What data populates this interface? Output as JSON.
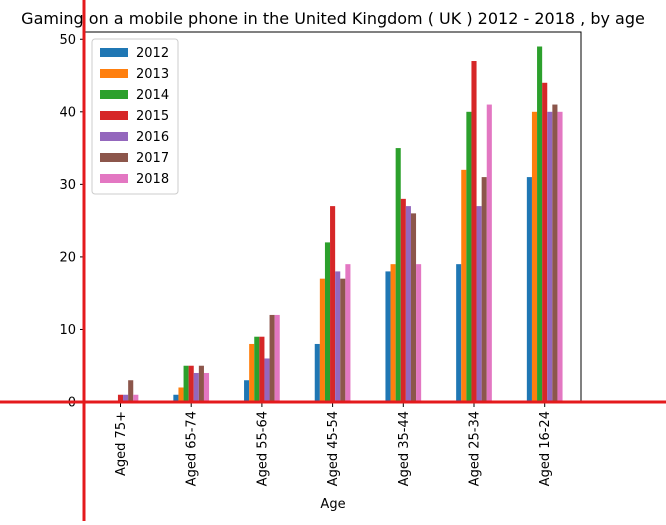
{
  "chart_data": {
    "type": "bar",
    "title": "Gaming on a mobile phone in the United Kingdom ( UK ) 2012 - 2018 , by age",
    "xlabel": "Age",
    "ylabel": "",
    "categories": [
      "Aged 75+",
      "Aged 65-74",
      "Aged 55-64",
      "Aged 45-54",
      "Aged 35-44",
      "Aged 25-34",
      "Aged 16-24"
    ],
    "ylim": [
      0,
      51
    ],
    "yticks": [
      0,
      10,
      20,
      30,
      40,
      50
    ],
    "grid": false,
    "legend_position": "top-left",
    "series": [
      {
        "name": "2012",
        "color": "#1f77b4",
        "values": [
          0,
          1,
          3,
          8,
          18,
          19,
          31
        ]
      },
      {
        "name": "2013",
        "color": "#ff7f0e",
        "values": [
          0,
          2,
          8,
          17,
          19,
          32,
          40
        ]
      },
      {
        "name": "2014",
        "color": "#2ca02c",
        "values": [
          0,
          5,
          9,
          22,
          35,
          40,
          49
        ]
      },
      {
        "name": "2015",
        "color": "#d62728",
        "values": [
          1,
          5,
          9,
          27,
          28,
          47,
          44
        ]
      },
      {
        "name": "2016",
        "color": "#9467bd",
        "values": [
          1,
          4,
          6,
          18,
          27,
          27,
          40
        ]
      },
      {
        "name": "2017",
        "color": "#8c564b",
        "values": [
          3,
          5,
          12,
          17,
          26,
          31,
          41
        ]
      },
      {
        "name": "2018",
        "color": "#e377c2",
        "values": [
          1,
          4,
          12,
          19,
          19,
          41,
          40
        ]
      }
    ]
  }
}
